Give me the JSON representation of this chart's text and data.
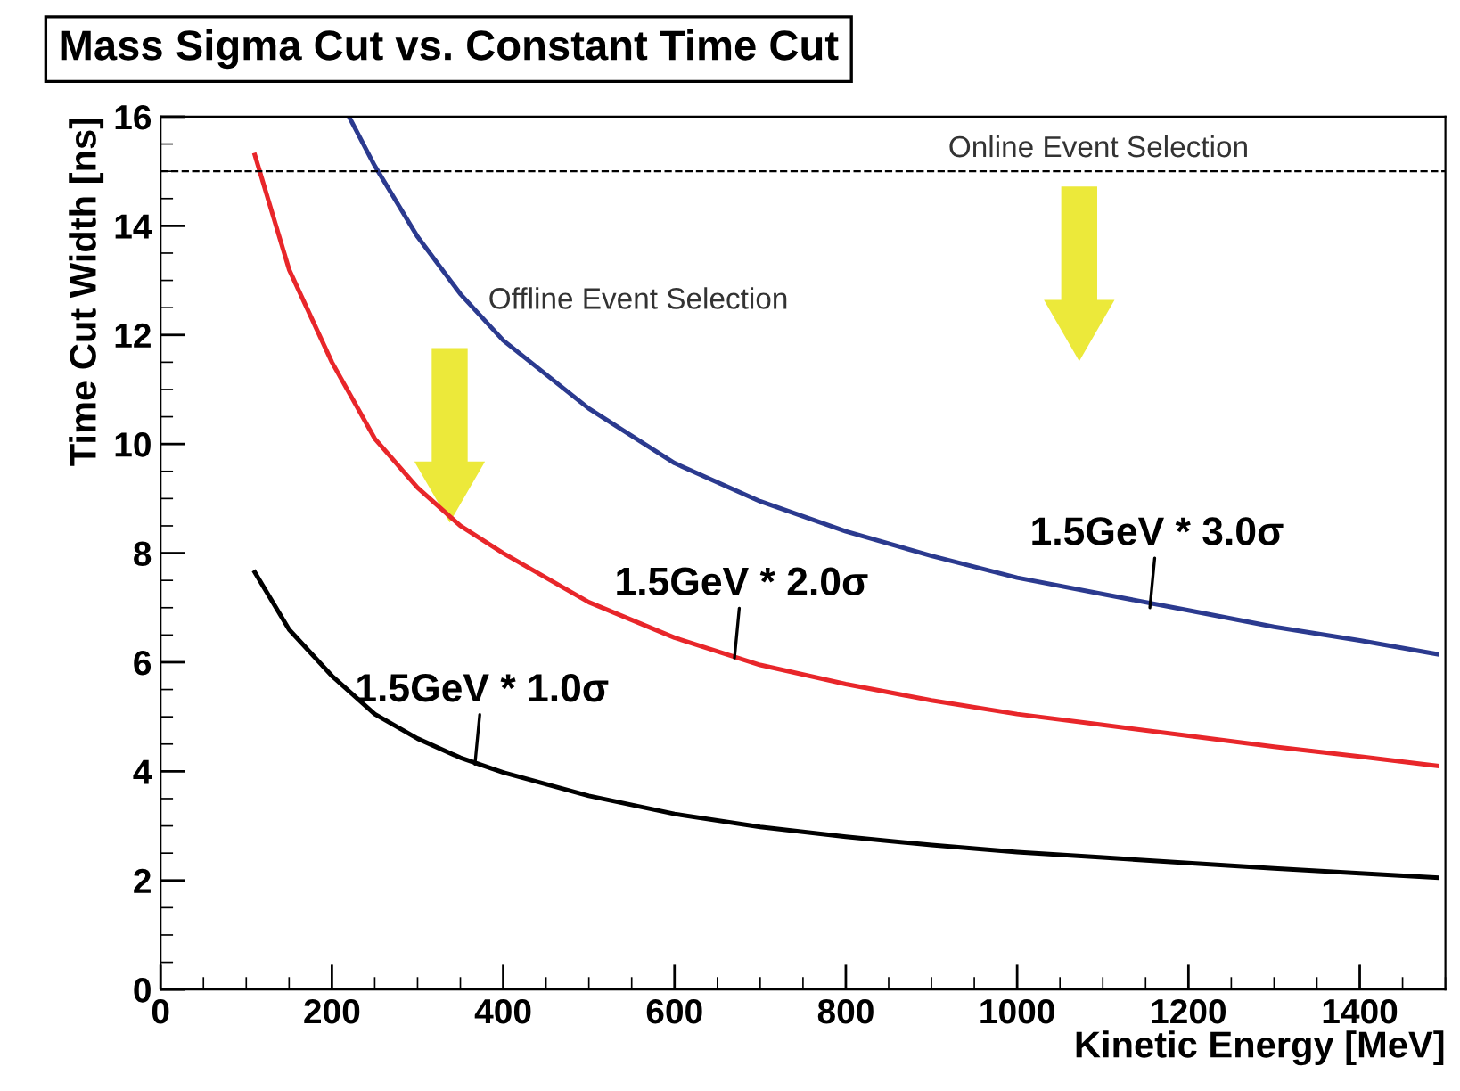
{
  "chart_data": {
    "type": "line",
    "title": "Mass Sigma Cut vs. Constant Time Cut",
    "xlabel": "Kinetic Energy [MeV]",
    "ylabel": "Time Cut Width [ns]",
    "series": [
      {
        "color": "#000000",
        "x": [
          110,
          150,
          200,
          250,
          300,
          350,
          400,
          500,
          600,
          700,
          800,
          900,
          1000,
          1100,
          1200,
          1300,
          1400,
          1490
        ],
        "values": [
          7.65,
          6.6,
          5.75,
          5.05,
          4.6,
          4.25,
          3.98,
          3.55,
          3.22,
          2.98,
          2.8,
          2.65,
          2.52,
          2.42,
          2.32,
          2.22,
          2.13,
          2.05
        ]
      },
      {
        "color": "#e8262a",
        "x": [
          110,
          150,
          200,
          250,
          300,
          350,
          400,
          500,
          600,
          700,
          800,
          900,
          1000,
          1100,
          1200,
          1300,
          1400,
          1490
        ],
        "values": [
          15.3,
          13.2,
          11.5,
          10.1,
          9.2,
          8.5,
          8.0,
          7.1,
          6.45,
          5.95,
          5.6,
          5.3,
          5.05,
          4.85,
          4.65,
          4.45,
          4.27,
          4.1
        ]
      },
      {
        "color": "#2b3a8f",
        "x": [
          220,
          250,
          300,
          350,
          400,
          500,
          600,
          700,
          800,
          900,
          1000,
          1100,
          1200,
          1300,
          1400,
          1490
        ],
        "values": [
          16,
          15.1,
          13.8,
          12.75,
          11.9,
          10.65,
          9.65,
          8.95,
          8.4,
          7.95,
          7.55,
          7.25,
          6.95,
          6.65,
          6.4,
          6.15
        ]
      }
    ],
    "xlim": [
      0,
      1500
    ],
    "ylim": [
      0,
      16
    ],
    "xticks": [
      0,
      200,
      400,
      600,
      800,
      1000,
      1200,
      1400
    ],
    "yticks": [
      0,
      2,
      4,
      6,
      8,
      10,
      12,
      14,
      16
    ],
    "ref_lines": [
      {
        "axis": "y",
        "value": 15,
        "label": "Online Event Selection",
        "line_style": "dashed",
        "color": "#000000"
      }
    ],
    "annotations": [
      {
        "text": "1.5GeV * 1.0σ",
        "x": 367,
        "y": 4.13
      },
      {
        "text": "1.5GeV * 2.0σ",
        "x": 670,
        "y": 6.08
      },
      {
        "text": "1.5GeV * 3.0σ",
        "x": 1155,
        "y": 7.0
      },
      "Offline Event Selection"
    ],
    "grid": false,
    "legend": false,
    "marker": "none",
    "line_style": "solid"
  }
}
